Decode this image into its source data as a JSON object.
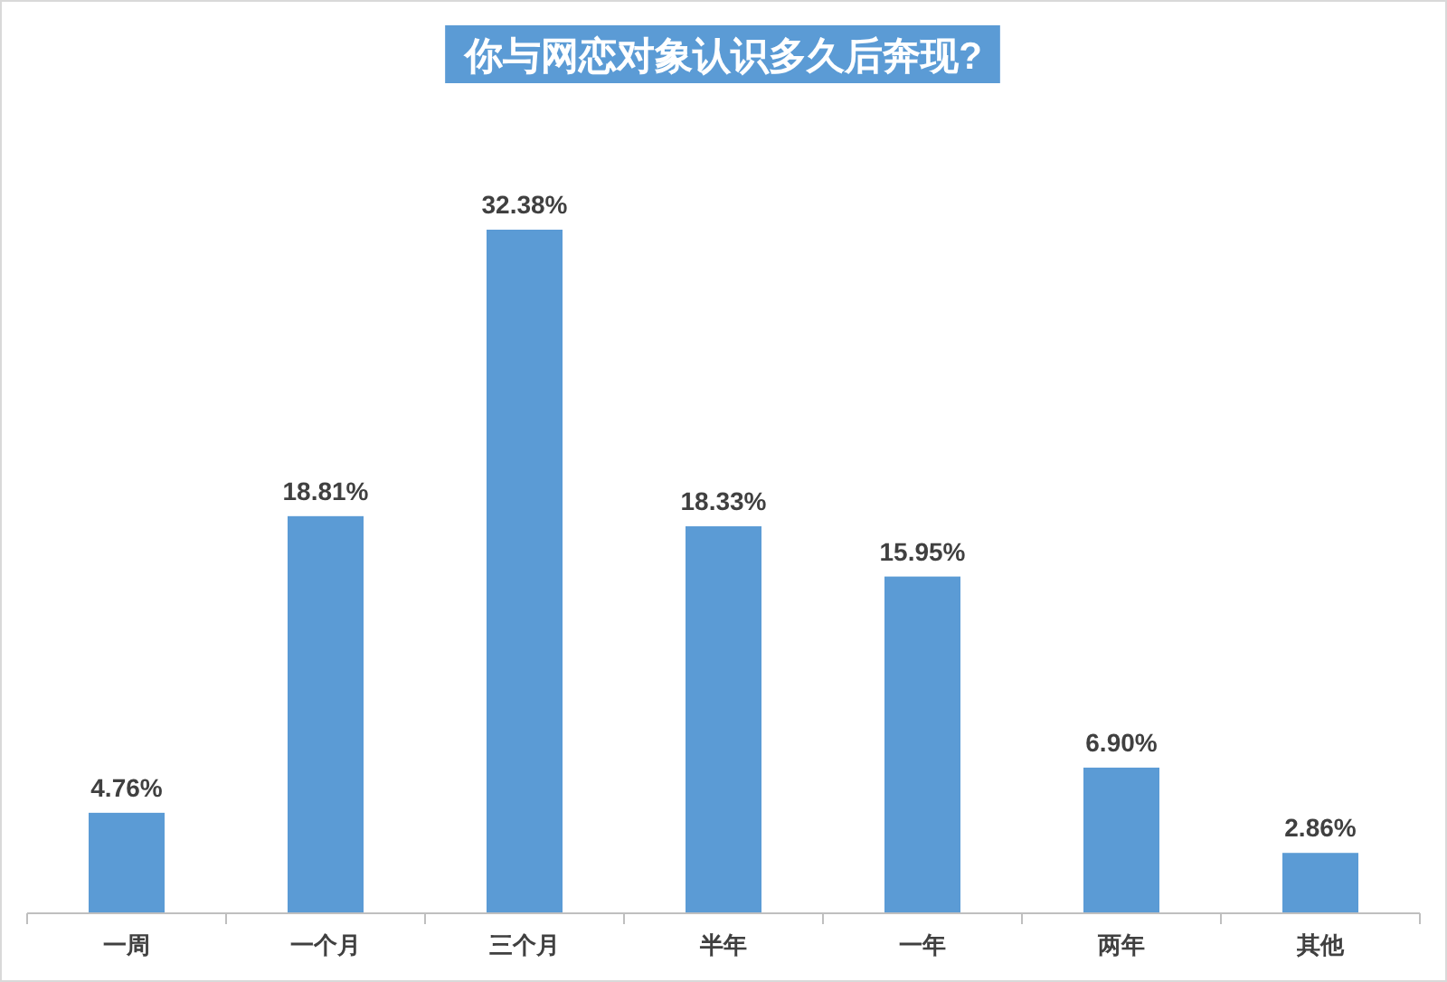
{
  "chart_data": {
    "type": "bar",
    "title": "你与网恋对象认识多久后奔现?",
    "categories": [
      "一周",
      "一个月",
      "三个月",
      "半年",
      "一年",
      "两年",
      "其他"
    ],
    "values": [
      4.76,
      18.81,
      32.38,
      18.33,
      15.95,
      6.9,
      2.86
    ],
    "value_labels": [
      "4.76%",
      "18.81%",
      "32.38%",
      "18.33%",
      "15.95%",
      "6.90%",
      "2.86%"
    ],
    "color": "#5b9bd5"
  }
}
